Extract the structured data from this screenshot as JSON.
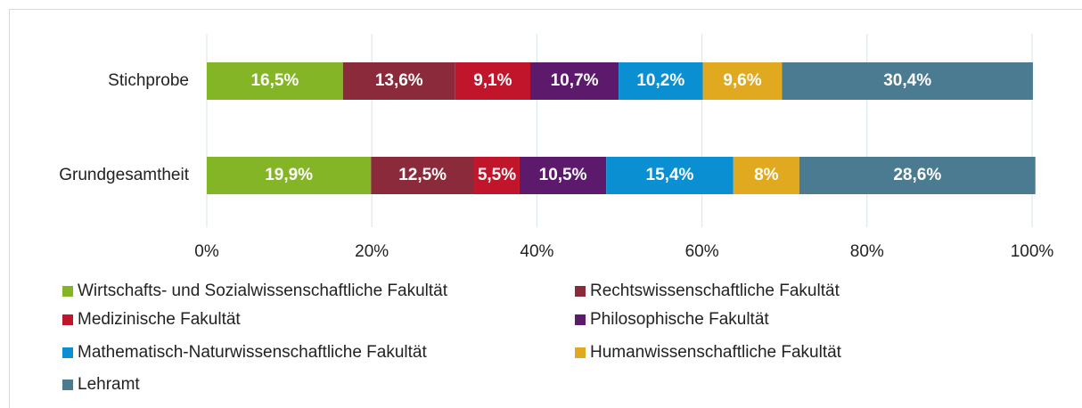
{
  "chart_data": {
    "type": "stacked-bar-horizontal",
    "categories": [
      "Stichprobe",
      "Grundgesamtheit"
    ],
    "series": [
      {
        "name": "Wirtschafts- und Sozialwissenschaftliche Fakultät",
        "color": "#84b526",
        "values": [
          16.5,
          19.9
        ],
        "value_labels": [
          "16,5%",
          "19,9%"
        ]
      },
      {
        "name": "Rechtswissenschaftliche Fakultät",
        "color": "#8b2a3b",
        "values": [
          13.6,
          12.5
        ],
        "value_labels": [
          "13,6%",
          "12,5%"
        ]
      },
      {
        "name": "Medizinische Fakultät",
        "color": "#c0152b",
        "values": [
          9.1,
          5.5
        ],
        "value_labels": [
          "9,1%",
          "5,5%"
        ]
      },
      {
        "name": "Philosophische Fakultät",
        "color": "#5d1a6c",
        "values": [
          10.7,
          10.5
        ],
        "value_labels": [
          "10,7%",
          "10,5%"
        ]
      },
      {
        "name": "Mathematisch-Naturwissenschaftliche Fakultät",
        "color": "#0a8fd3",
        "values": [
          10.2,
          15.4
        ],
        "value_labels": [
          "10,2%",
          "15,4%"
        ]
      },
      {
        "name": "Humanwissenschaftliche Fakultät",
        "color": "#e0a91f",
        "values": [
          9.6,
          8
        ],
        "value_labels": [
          "9,6%",
          "8%"
        ]
      },
      {
        "name": "Lehramt",
        "color": "#4a7b91",
        "values": [
          30.4,
          28.6
        ],
        "value_labels": [
          "30,4%",
          "28,6%"
        ]
      }
    ],
    "xlim": [
      0,
      100
    ],
    "xticks": [
      {
        "value": 0,
        "label": "0%"
      },
      {
        "value": 20,
        "label": "20%"
      },
      {
        "value": 40,
        "label": "40%"
      },
      {
        "value": 60,
        "label": "60%"
      },
      {
        "value": 80,
        "label": "80%"
      },
      {
        "value": 100,
        "label": "100%"
      }
    ],
    "grid": true
  }
}
